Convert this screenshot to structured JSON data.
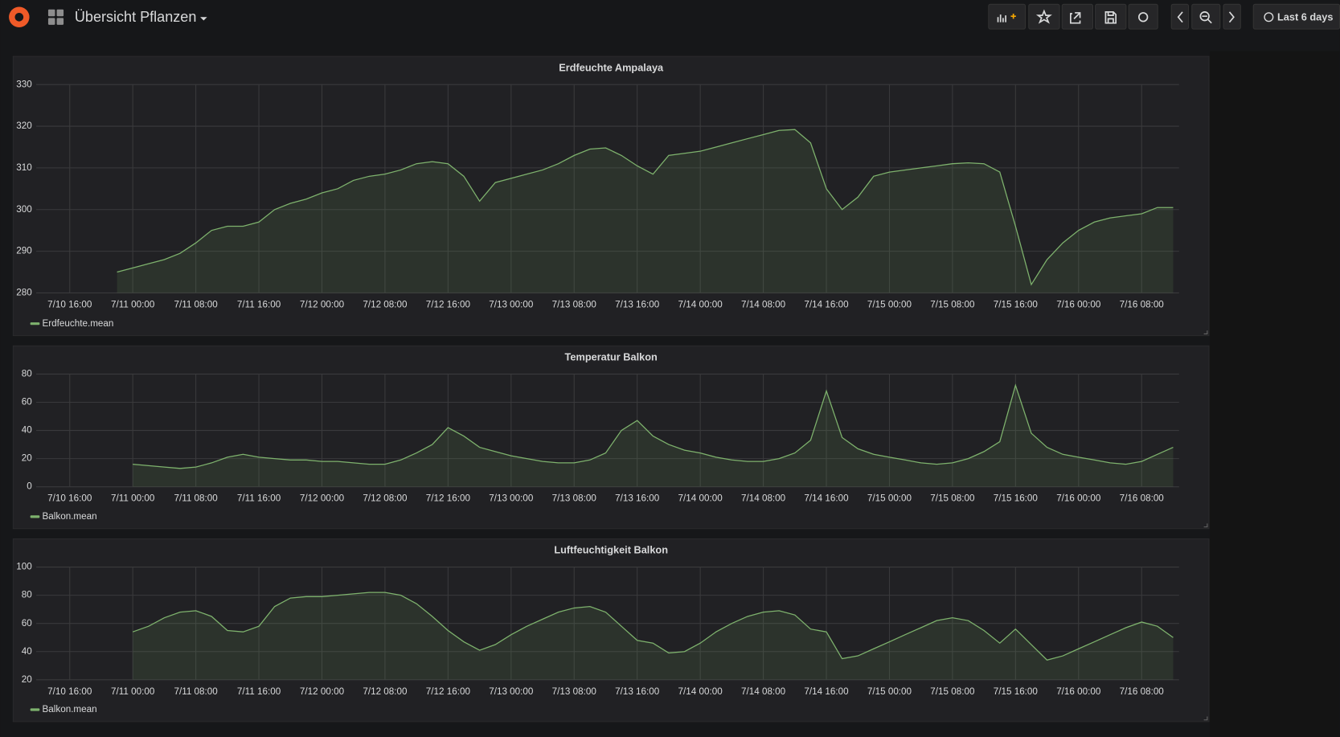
{
  "header": {
    "title": "Übersicht Pflanzen",
    "time_range": "Last 6 days"
  },
  "chart_data": [
    {
      "type": "line",
      "title": "Erdfeuchte Ampalaya",
      "x": [
        "7/10 22:00",
        "7/11 00:00",
        "7/11 02:00",
        "7/11 04:00",
        "7/11 06:00",
        "7/11 08:00",
        "7/11 10:00",
        "7/11 12:00",
        "7/11 14:00",
        "7/11 16:00",
        "7/11 18:00",
        "7/11 20:00",
        "7/11 22:00",
        "7/12 00:00",
        "7/12 02:00",
        "7/12 04:00",
        "7/12 06:00",
        "7/12 08:00",
        "7/12 10:00",
        "7/12 12:00",
        "7/12 14:00",
        "7/12 16:00",
        "7/12 18:00",
        "7/12 20:00",
        "7/12 22:00",
        "7/13 00:00",
        "7/13 02:00",
        "7/13 04:00",
        "7/13 06:00",
        "7/13 08:00",
        "7/13 10:00",
        "7/13 12:00",
        "7/13 14:00",
        "7/13 16:00",
        "7/13 18:00",
        "7/13 20:00",
        "7/13 22:00",
        "7/14 00:00",
        "7/14 02:00",
        "7/14 04:00",
        "7/14 06:00",
        "7/14 08:00",
        "7/14 10:00",
        "7/14 12:00",
        "7/14 14:00",
        "7/14 16:00",
        "7/14 18:00",
        "7/14 20:00",
        "7/14 22:00",
        "7/15 00:00",
        "7/15 02:00",
        "7/15 04:00",
        "7/15 06:00",
        "7/15 08:00",
        "7/15 10:00",
        "7/15 12:00",
        "7/15 14:00",
        "7/15 16:00",
        "7/15 18:00",
        "7/15 20:00",
        "7/15 22:00",
        "7/16 00:00",
        "7/16 02:00",
        "7/16 04:00",
        "7/16 06:00",
        "7/16 08:00",
        "7/16 10:00",
        "7/16 12:00"
      ],
      "series": [
        {
          "name": "Erdfeuchte.mean",
          "color": "#7eb26d",
          "values": [
            285,
            286,
            287,
            288,
            289.5,
            292,
            295,
            296,
            296,
            297,
            300,
            301.5,
            302.5,
            304,
            305,
            307,
            308,
            308.5,
            309.5,
            311,
            311.5,
            311,
            308,
            302,
            306.5,
            307.5,
            308.5,
            309.5,
            311,
            313,
            314.5,
            314.8,
            313,
            310.5,
            308.5,
            313,
            313.5,
            314,
            315,
            316,
            317,
            318,
            319,
            319.2,
            316,
            305,
            300,
            303,
            308,
            309,
            309.5,
            310,
            310.5,
            311,
            311.2,
            311,
            309,
            296,
            282,
            288,
            292,
            295,
            297,
            298,
            298.5,
            299,
            300.5,
            300.5
          ]
        }
      ],
      "xlim": [
        "7/10 11:45",
        "7/16 12:45"
      ],
      "xticks": [
        "7/10 16:00",
        "7/11 00:00",
        "7/11 08:00",
        "7/11 16:00",
        "7/12 00:00",
        "7/12 08:00",
        "7/12 16:00",
        "7/13 00:00",
        "7/13 08:00",
        "7/13 16:00",
        "7/14 00:00",
        "7/14 08:00",
        "7/14 16:00",
        "7/15 00:00",
        "7/15 08:00",
        "7/15 16:00",
        "7/16 00:00",
        "7/16 08:00"
      ],
      "ylim": [
        280,
        330
      ],
      "yticks": [
        280,
        290,
        300,
        310,
        320,
        330
      ],
      "grid": true
    },
    {
      "type": "line",
      "title": "Temperatur Balkon",
      "x": [
        "7/10 22:00",
        "7/11 00:00",
        "7/11 02:00",
        "7/11 04:00",
        "7/11 06:00",
        "7/11 08:00",
        "7/11 10:00",
        "7/11 12:00",
        "7/11 14:00",
        "7/11 16:00",
        "7/11 18:00",
        "7/11 20:00",
        "7/11 22:00",
        "7/12 00:00",
        "7/12 02:00",
        "7/12 04:00",
        "7/12 06:00",
        "7/12 08:00",
        "7/12 10:00",
        "7/12 12:00",
        "7/12 14:00",
        "7/12 16:00",
        "7/12 18:00",
        "7/12 20:00",
        "7/12 22:00",
        "7/13 00:00",
        "7/13 02:00",
        "7/13 04:00",
        "7/13 06:00",
        "7/13 08:00",
        "7/13 10:00",
        "7/13 12:00",
        "7/13 14:00",
        "7/13 16:00",
        "7/13 18:00",
        "7/13 20:00",
        "7/13 22:00",
        "7/14 00:00",
        "7/14 02:00",
        "7/14 04:00",
        "7/14 06:00",
        "7/14 08:00",
        "7/14 10:00",
        "7/14 12:00",
        "7/14 14:00",
        "7/14 16:00",
        "7/14 18:00",
        "7/14 20:00",
        "7/14 22:00",
        "7/15 00:00",
        "7/15 02:00",
        "7/15 04:00",
        "7/15 06:00",
        "7/15 08:00",
        "7/15 10:00",
        "7/15 12:00",
        "7/15 14:00",
        "7/15 16:00",
        "7/15 18:00",
        "7/15 20:00",
        "7/15 22:00",
        "7/16 00:00",
        "7/16 02:00",
        "7/16 04:00",
        "7/16 06:00",
        "7/16 08:00",
        "7/16 10:00",
        "7/16 12:00"
      ],
      "series": [
        {
          "name": "Balkon.mean",
          "color": "#7eb26d",
          "values": [
            null,
            16,
            15,
            14,
            13,
            14,
            17,
            21,
            23,
            21,
            20,
            19,
            19,
            18,
            18,
            17,
            16,
            16,
            19,
            24,
            30,
            42,
            36,
            28,
            25,
            22,
            20,
            18,
            17,
            17,
            19,
            24,
            40,
            47,
            36,
            30,
            26,
            24,
            21,
            19,
            18,
            18,
            20,
            24,
            33,
            68,
            35,
            27,
            23,
            21,
            19,
            17,
            16,
            17,
            20,
            25,
            32,
            72,
            38,
            28,
            23,
            21,
            19,
            17,
            16,
            18,
            23,
            28
          ]
        }
      ],
      "xlim": [
        "7/10 11:45",
        "7/16 12:45"
      ],
      "xticks": [
        "7/10 16:00",
        "7/11 00:00",
        "7/11 08:00",
        "7/11 16:00",
        "7/12 00:00",
        "7/12 08:00",
        "7/12 16:00",
        "7/13 00:00",
        "7/13 08:00",
        "7/13 16:00",
        "7/14 00:00",
        "7/14 08:00",
        "7/14 16:00",
        "7/15 00:00",
        "7/15 08:00",
        "7/15 16:00",
        "7/16 00:00",
        "7/16 08:00"
      ],
      "ylim": [
        0,
        80
      ],
      "yticks": [
        0,
        20,
        40,
        60,
        80
      ],
      "grid": true
    },
    {
      "type": "line",
      "title": "Luftfeuchtigkeit Balkon",
      "x": [
        "7/10 22:00",
        "7/11 00:00",
        "7/11 02:00",
        "7/11 04:00",
        "7/11 06:00",
        "7/11 08:00",
        "7/11 10:00",
        "7/11 12:00",
        "7/11 14:00",
        "7/11 16:00",
        "7/11 18:00",
        "7/11 20:00",
        "7/11 22:00",
        "7/12 00:00",
        "7/12 02:00",
        "7/12 04:00",
        "7/12 06:00",
        "7/12 08:00",
        "7/12 10:00",
        "7/12 12:00",
        "7/12 14:00",
        "7/12 16:00",
        "7/12 18:00",
        "7/12 20:00",
        "7/12 22:00",
        "7/13 00:00",
        "7/13 02:00",
        "7/13 04:00",
        "7/13 06:00",
        "7/13 08:00",
        "7/13 10:00",
        "7/13 12:00",
        "7/13 14:00",
        "7/13 16:00",
        "7/13 18:00",
        "7/13 20:00",
        "7/13 22:00",
        "7/14 00:00",
        "7/14 02:00",
        "7/14 04:00",
        "7/14 06:00",
        "7/14 08:00",
        "7/14 10:00",
        "7/14 12:00",
        "7/14 14:00",
        "7/14 16:00",
        "7/14 18:00",
        "7/14 20:00",
        "7/14 22:00",
        "7/15 00:00",
        "7/15 02:00",
        "7/15 04:00",
        "7/15 06:00",
        "7/15 08:00",
        "7/15 10:00",
        "7/15 12:00",
        "7/15 14:00",
        "7/15 16:00",
        "7/15 18:00",
        "7/15 20:00",
        "7/15 22:00",
        "7/16 00:00",
        "7/16 02:00",
        "7/16 04:00",
        "7/16 06:00",
        "7/16 08:00",
        "7/16 10:00",
        "7/16 12:00"
      ],
      "series": [
        {
          "name": "Balkon.mean",
          "color": "#7eb26d",
          "values": [
            null,
            54,
            58,
            64,
            68,
            69,
            65,
            55,
            54,
            58,
            72,
            78,
            79,
            79,
            80,
            81,
            82,
            82,
            80,
            74,
            65,
            55,
            47,
            41,
            45,
            52,
            58,
            63,
            68,
            71,
            72,
            68,
            58,
            48,
            46,
            39,
            40,
            46,
            54,
            60,
            65,
            68,
            69,
            66,
            56,
            54,
            35,
            37,
            42,
            47,
            52,
            57,
            62,
            64,
            62,
            55,
            46,
            56,
            45,
            34,
            37,
            42,
            47,
            52,
            57,
            61,
            58,
            50
          ]
        }
      ],
      "xlim": [
        "7/10 11:45",
        "7/16 12:45"
      ],
      "xticks": [
        "7/10 16:00",
        "7/11 00:00",
        "7/11 08:00",
        "7/11 16:00",
        "7/12 00:00",
        "7/12 08:00",
        "7/12 16:00",
        "7/13 00:00",
        "7/13 08:00",
        "7/13 16:00",
        "7/14 00:00",
        "7/14 08:00",
        "7/14 16:00",
        "7/15 00:00",
        "7/15 08:00",
        "7/15 16:00",
        "7/16 00:00",
        "7/16 08:00"
      ],
      "ylim": [
        20,
        100
      ],
      "yticks": [
        20,
        40,
        60,
        80,
        100
      ],
      "grid": true
    }
  ]
}
